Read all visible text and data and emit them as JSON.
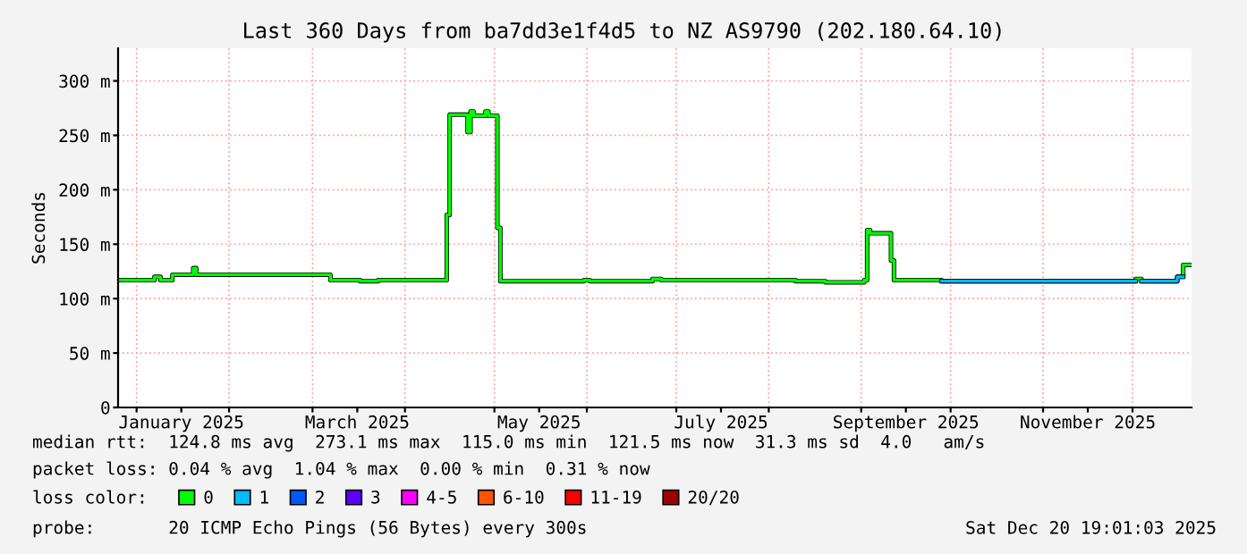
{
  "chart_data": {
    "type": "step",
    "title": "Last 360 Days from ba7dd3e1f4d5 to NZ AS9790 (202.180.64.10)",
    "ylabel": "Seconds",
    "x": [
      "2024-12-25T19:00",
      "2025-01-07",
      "2025-01-09",
      "2025-01-13",
      "2025-01-20",
      "2025-01-21",
      "2025-03-07",
      "2025-03-17",
      "2025-03-23",
      "2025-04-15",
      "2025-04-16",
      "2025-04-22",
      "2025-04-23",
      "2025-04-24",
      "2025-04-28",
      "2025-04-29",
      "2025-05-02",
      "2025-05-03",
      "2025-05-31",
      "2025-06-02",
      "2025-06-23",
      "2025-06-26",
      "2025-07-30",
      "2025-08-10",
      "2025-08-20",
      "2025-09-02",
      "2025-09-03",
      "2025-09-04",
      "2025-09-11",
      "2025-09-12",
      "2025-09-28",
      "2025-12-02",
      "2025-12-04",
      "2025-12-16",
      "2025-12-18",
      "2025-12-20T19:00"
    ],
    "series": [
      {
        "name": "0",
        "color": "#00ff00",
        "values": [
          117,
          120,
          117,
          122,
          128,
          122,
          117,
          116,
          117,
          177,
          269,
          253,
          272,
          268,
          272,
          268,
          165,
          116,
          117,
          116,
          118,
          117,
          117,
          116,
          115,
          117,
          163,
          160,
          135,
          117,
          116,
          118,
          116,
          120,
          131,
          131
        ]
      },
      {
        "name": "1",
        "color": "#00bbff",
        "values": [
          null,
          null,
          null,
          null,
          null,
          null,
          null,
          null,
          null,
          null,
          null,
          null,
          null,
          null,
          null,
          null,
          null,
          null,
          null,
          null,
          null,
          null,
          null,
          null,
          null,
          null,
          null,
          null,
          null,
          null,
          116,
          null,
          116,
          120,
          null,
          null
        ]
      },
      {
        "name": "2",
        "color": "#0059ff",
        "values": [
          null,
          null,
          null,
          null,
          null,
          null,
          null,
          null,
          null,
          null,
          null,
          null,
          null,
          null,
          null,
          null,
          null,
          null,
          null,
          null,
          null,
          null,
          null,
          null,
          null,
          null,
          null,
          null,
          null,
          null,
          null,
          null,
          null,
          null,
          null,
          null
        ]
      },
      {
        "name": "3",
        "color": "#5e00ff",
        "values": [
          null,
          null,
          null,
          null,
          null,
          null,
          null,
          null,
          null,
          null,
          null,
          null,
          null,
          null,
          null,
          null,
          null,
          null,
          null,
          null,
          null,
          null,
          null,
          null,
          null,
          null,
          null,
          null,
          null,
          null,
          null,
          null,
          null,
          null,
          null,
          null
        ]
      },
      {
        "name": "4-5",
        "color": "#ff00ff",
        "values": [
          null,
          null,
          null,
          null,
          null,
          null,
          null,
          null,
          null,
          null,
          null,
          null,
          null,
          null,
          null,
          null,
          null,
          null,
          null,
          null,
          null,
          null,
          null,
          null,
          null,
          null,
          null,
          null,
          null,
          null,
          null,
          null,
          null,
          null,
          null,
          null
        ]
      },
      {
        "name": "6-10",
        "color": "#ff5500",
        "values": [
          null,
          null,
          null,
          null,
          null,
          null,
          null,
          null,
          null,
          null,
          null,
          null,
          null,
          null,
          null,
          null,
          null,
          null,
          null,
          null,
          null,
          null,
          null,
          null,
          null,
          null,
          null,
          null,
          null,
          null,
          null,
          null,
          null,
          null,
          null,
          null
        ]
      },
      {
        "name": "11-19",
        "color": "#ff0000",
        "values": [
          null,
          null,
          null,
          null,
          null,
          null,
          null,
          null,
          null,
          null,
          null,
          null,
          null,
          null,
          null,
          null,
          null,
          null,
          null,
          null,
          null,
          null,
          null,
          null,
          null,
          null,
          null,
          null,
          null,
          null,
          null,
          null,
          null,
          null,
          null,
          null
        ]
      },
      {
        "name": "20/20",
        "color": "#a10000",
        "values": [
          null,
          null,
          null,
          null,
          null,
          null,
          null,
          null,
          null,
          null,
          null,
          null,
          null,
          null,
          null,
          null,
          null,
          null,
          null,
          null,
          null,
          null,
          null,
          null,
          null,
          null,
          null,
          null,
          null,
          null,
          null,
          null,
          null,
          null,
          null,
          null
        ]
      }
    ],
    "xlim": [
      "2024-12-25T19:00",
      "2025-12-20T19:00"
    ],
    "xticks": [
      {
        "value": "2025-01-01",
        "label": null
      },
      {
        "value": "2025-01-16",
        "label": "January 2025"
      },
      {
        "value": "2025-02-01",
        "label": null
      },
      {
        "value": "2025-03-01",
        "label": null
      },
      {
        "value": "2025-03-16",
        "label": "March 2025"
      },
      {
        "value": "2025-04-01",
        "label": null
      },
      {
        "value": "2025-05-01",
        "label": null
      },
      {
        "value": "2025-05-16",
        "label": "May 2025"
      },
      {
        "value": "2025-06-01",
        "label": null
      },
      {
        "value": "2025-07-01",
        "label": null
      },
      {
        "value": "2025-07-16",
        "label": "July 2025"
      },
      {
        "value": "2025-08-01",
        "label": null
      },
      {
        "value": "2025-09-01",
        "label": null
      },
      {
        "value": "2025-09-16",
        "label": "September 2025"
      },
      {
        "value": "2025-10-01",
        "label": null
      },
      {
        "value": "2025-11-01",
        "label": null
      },
      {
        "value": "2025-11-16",
        "label": "November 2025"
      },
      {
        "value": "2025-12-01",
        "label": null
      }
    ],
    "ylim": [
      0,
      330
    ],
    "yticks": [
      0,
      {
        "value": 50,
        "label": "50 m"
      },
      {
        "value": 100,
        "label": "100 m"
      },
      {
        "value": 150,
        "label": "150 m"
      },
      {
        "value": 200,
        "label": "200 m"
      },
      {
        "value": 250,
        "label": "250 m"
      },
      {
        "value": 300,
        "label": "300 m"
      }
    ],
    "grid": true,
    "legend": "bottom",
    "annotations": [
      "median rtt:  124.8 ms avg  273.1 ms max  115.0 ms min  121.5 ms now  31.3 ms sd  4.0   am/s",
      "packet loss: 0.04 % avg  1.04 % max  0.00 % min  0.31 % now",
      "loss color:",
      "probe:       20 ICMP Echo Pings (56 Bytes) every 300s",
      "Sat Dec 20 19:01:03 2025"
    ]
  }
}
